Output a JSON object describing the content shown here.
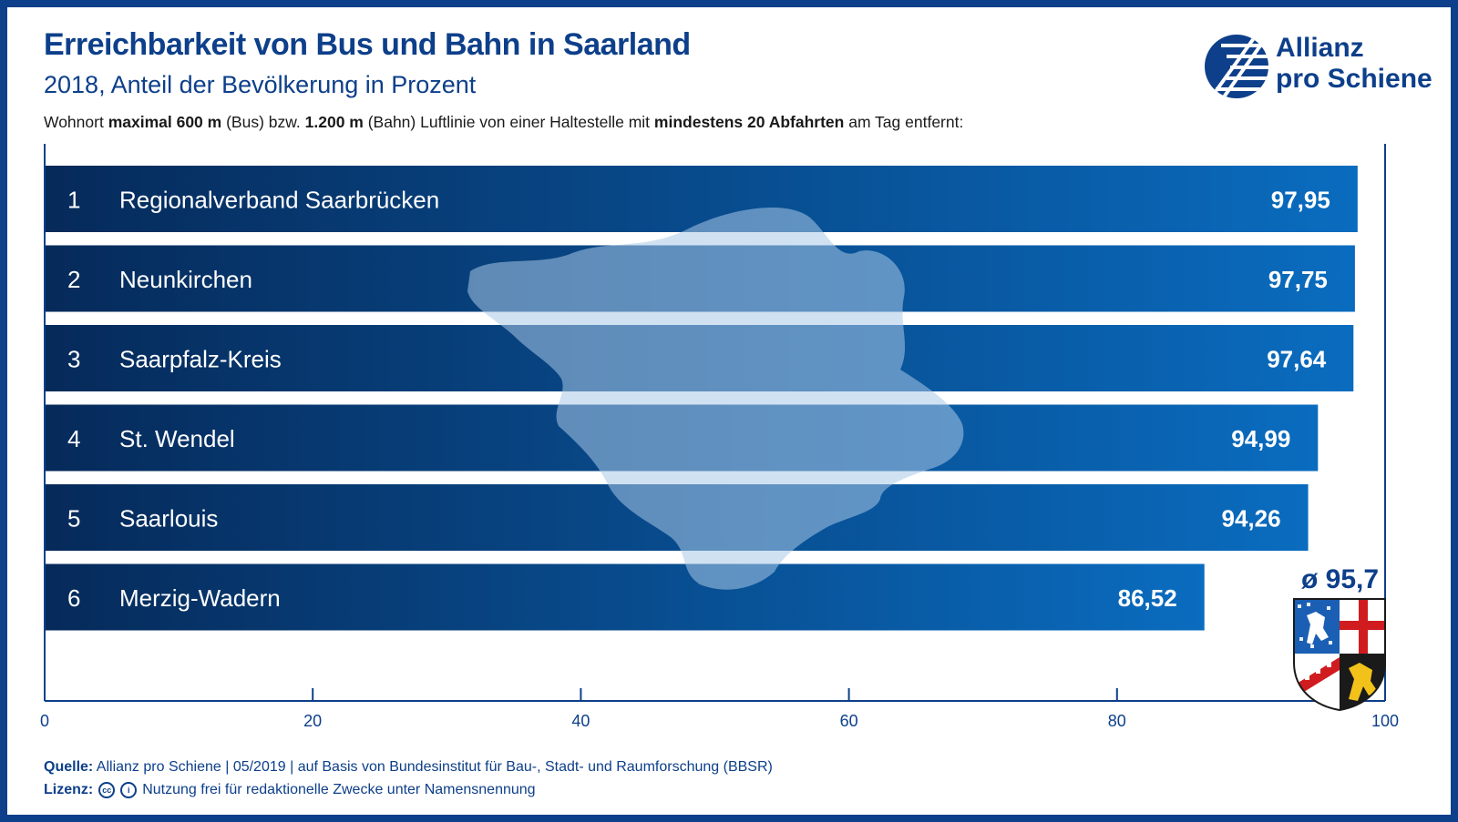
{
  "header": {
    "title": "Erreichbarkeit von Bus und Bahn in Saarland",
    "subtitle": "2018, Anteil der Bevölkerung in Prozent",
    "desc_1": "Wohnort ",
    "desc_2": "maximal 600 m",
    "desc_3": " (Bus) bzw. ",
    "desc_4": "1.200 m",
    "desc_5": " (Bahn) Luftlinie von einer Haltestelle mit ",
    "desc_6": "mindestens 20 Abfahrten",
    "desc_7": " am Tag entfernt:"
  },
  "logo": {
    "line1": "Allianz",
    "line2": "pro Schiene",
    "icon": "allianz-pro-schiene-logo-icon"
  },
  "colors": {
    "brand": "#0d3f8a",
    "bar_dark": "#062a5a",
    "bar_light": "#0a6cbf",
    "map": "#a9c8e8"
  },
  "chart_data": {
    "type": "bar",
    "orientation": "horizontal",
    "ranks": [
      "1",
      "2",
      "3",
      "4",
      "5",
      "6"
    ],
    "categories": [
      "Regionalverband Saarbrücken",
      "Neunkirchen",
      "Saarpfalz-Kreis",
      "St. Wendel",
      "Saarlouis",
      "Merzig-Wadern"
    ],
    "values": [
      97.95,
      97.75,
      97.64,
      94.99,
      94.26,
      86.52
    ],
    "value_labels": [
      "97,95",
      "97,75",
      "97,64",
      "94,99",
      "94,26",
      "86,52"
    ],
    "xlim": [
      0,
      100
    ],
    "xticks": [
      0,
      20,
      40,
      60,
      80,
      100
    ],
    "xtick_labels": [
      "0",
      "20",
      "40",
      "60",
      "80",
      "100"
    ],
    "average_label": "ø 95,7",
    "grid": false
  },
  "footer": {
    "source_label": "Quelle:",
    "source_text": "Allianz pro Schiene | 05/2019 | auf Basis von Bundesinstitut für Bau-, Stadt- und Raumforschung (BBSR)",
    "license_label": "Lizenz:",
    "license_text": "Nutzung frei für redaktionelle Zwecke unter Namensnennung",
    "license_icon": "creative-commons-by-icon"
  }
}
